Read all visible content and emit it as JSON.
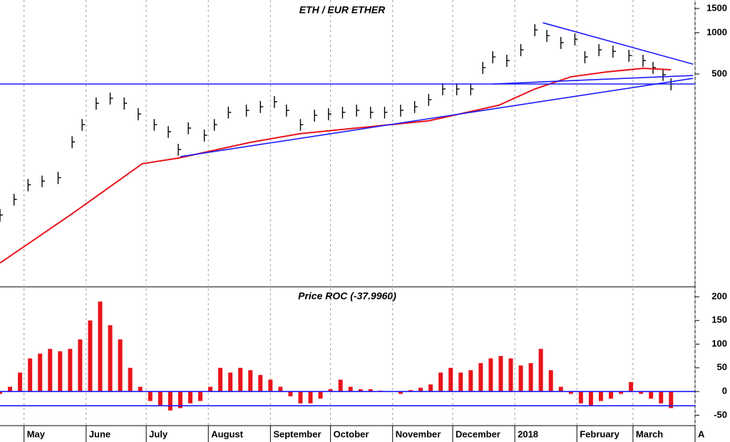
{
  "chart_data": [
    {
      "type": "ohlc",
      "title": "ETH / EUR ETHER",
      "log_scale": true,
      "xlim": [
        0,
        347
      ],
      "xticks": [
        12,
        43,
        73,
        104,
        135,
        165,
        196,
        226,
        257,
        288,
        316,
        347
      ],
      "ylim": [
        14.6,
        1730
      ],
      "yticks": [
        500,
        1000,
        1500
      ],
      "grid": true,
      "x": [
        0,
        7,
        14,
        21,
        29,
        36,
        41,
        48,
        55,
        62,
        69,
        77,
        84,
        89,
        94,
        102,
        107,
        114,
        123,
        130,
        137,
        143,
        150,
        157,
        164,
        171,
        178,
        185,
        192,
        200,
        207,
        214,
        221,
        228,
        235,
        241,
        246,
        253,
        260,
        267,
        273,
        280,
        287,
        292,
        299,
        306,
        314,
        321,
        326,
        331,
        335
      ],
      "high": [
        52,
        67,
        86,
        91,
        97,
        176,
        235,
        337,
        366,
        337,
        282,
        235,
        209,
        155,
        222,
        197,
        235,
        289,
        299,
        318,
        345,
        299,
        235,
        275,
        282,
        289,
        299,
        289,
        289,
        299,
        318,
        358,
        428,
        428,
        428,
        613,
        733,
        690,
        825,
        1153,
        1047,
        931,
        987,
        733,
        825,
        804,
        750,
        690,
        613,
        543,
        465
      ],
      "low": [
        42,
        55,
        70,
        75,
        79,
        144,
        193,
        275,
        300,
        275,
        230,
        193,
        171,
        127,
        182,
        161,
        193,
        237,
        245,
        260,
        283,
        245,
        193,
        225,
        230,
        237,
        245,
        237,
        237,
        245,
        260,
        293,
        350,
        350,
        350,
        501,
        599,
        564,
        675,
        943,
        857,
        761,
        807,
        599,
        675,
        658,
        614,
        564,
        501,
        445,
        381
      ],
      "close": [
        47,
        61,
        78,
        83,
        88,
        160,
        214,
        306,
        333,
        306,
        256,
        214,
        190,
        141,
        202,
        179,
        214,
        263,
        272,
        289,
        314,
        272,
        214,
        250,
        256,
        263,
        272,
        263,
        263,
        272,
        289,
        325,
        389,
        389,
        389,
        557,
        666,
        627,
        750,
        1048,
        952,
        846,
        897,
        666,
        750,
        731,
        682,
        627,
        557,
        494,
        423
      ],
      "color": "#000000",
      "moving_average": {
        "x": [
          0,
          36,
          71,
          89,
          125,
          150,
          178,
          214,
          249,
          267,
          285,
          303,
          321,
          335
        ],
        "values": [
          21,
          48,
          111,
          122,
          159,
          184,
          202,
          228,
          296,
          389,
          477,
          518,
          550,
          537
        ],
        "color": "#e8141b"
      },
      "hlines": [
        {
          "value": 423,
          "color": "#1a1aff"
        }
      ],
      "trend_lines": [
        {
          "x": [
            90,
            346
          ],
          "y": [
            125,
            465
          ],
          "color": "#1a1aff"
        },
        {
          "x": [
            271,
            346
          ],
          "y": [
            1181,
            590
          ],
          "color": "#1a1aff"
        },
        {
          "x": [
            246,
            346
          ],
          "y": [
            423,
            488
          ],
          "color": "#1a1aff"
        }
      ]
    },
    {
      "type": "bar",
      "title": "Price ROC (-37.9960)",
      "xlim": [
        0,
        347
      ],
      "xticks": [
        {
          "value": 12,
          "label": "May"
        },
        {
          "value": 43,
          "label": "June"
        },
        {
          "value": 73,
          "label": "July"
        },
        {
          "value": 104,
          "label": "August"
        },
        {
          "value": 135,
          "label": "September"
        },
        {
          "value": 165,
          "label": "October"
        },
        {
          "value": 196,
          "label": "November"
        },
        {
          "value": 226,
          "label": "December"
        },
        {
          "value": 257,
          "label": "2018"
        },
        {
          "value": 288,
          "label": "February"
        },
        {
          "value": 316,
          "label": "March"
        },
        {
          "value": 347,
          "label": "A"
        }
      ],
      "ylim": [
        -72,
        218
      ],
      "yticks": [
        -50,
        0,
        50,
        100,
        150,
        200
      ],
      "grid": true,
      "x": [
        0,
        5,
        10,
        15,
        20,
        25,
        30,
        35,
        40,
        45,
        50,
        55,
        60,
        65,
        70,
        75,
        80,
        85,
        90,
        95,
        100,
        105,
        110,
        115,
        120,
        125,
        130,
        135,
        140,
        145,
        150,
        155,
        160,
        165,
        170,
        175,
        180,
        185,
        190,
        195,
        200,
        205,
        210,
        215,
        220,
        225,
        230,
        235,
        240,
        245,
        250,
        255,
        260,
        265,
        270,
        275,
        280,
        285,
        290,
        295,
        300,
        305,
        310,
        315,
        320,
        325,
        330,
        335
      ],
      "values": [
        -5,
        10,
        40,
        70,
        80,
        90,
        85,
        90,
        110,
        150,
        190,
        140,
        110,
        50,
        10,
        -20,
        -30,
        -40,
        -35,
        -25,
        -20,
        10,
        50,
        40,
        50,
        45,
        35,
        25,
        10,
        -10,
        -25,
        -25,
        -15,
        5,
        25,
        10,
        5,
        5,
        2,
        0,
        -5,
        3,
        8,
        15,
        40,
        50,
        40,
        45,
        60,
        70,
        75,
        70,
        55,
        60,
        90,
        45,
        10,
        -5,
        -25,
        -30,
        -20,
        -15,
        -5,
        20,
        -5,
        -15,
        -25,
        -35
      ],
      "color": "#e8141b",
      "hlines": [
        {
          "value": 0,
          "color": "#1a1aff"
        },
        {
          "value": -30,
          "color": "#1a1aff"
        }
      ]
    }
  ]
}
